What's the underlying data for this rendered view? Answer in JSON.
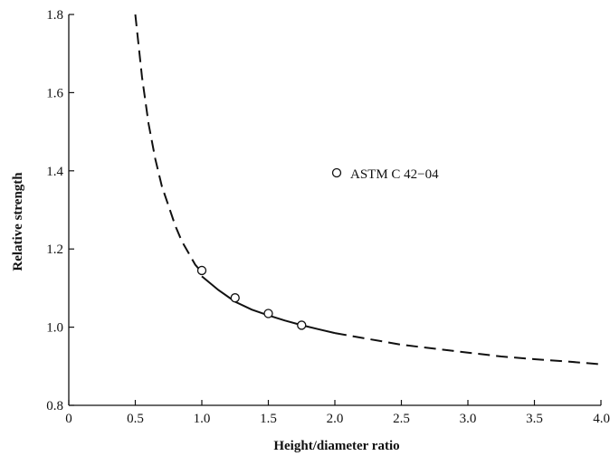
{
  "chart_data": {
    "type": "line",
    "title": "",
    "xlabel": "Height/diameter ratio",
    "ylabel": "Relative strength",
    "xlim": [
      0,
      4.0
    ],
    "ylim": [
      0.8,
      1.8
    ],
    "x_ticks": [
      "0",
      "0.5",
      "1.0",
      "1.5",
      "2.0",
      "2.5",
      "3.0",
      "3.5",
      "4.0"
    ],
    "y_ticks": [
      "0.8",
      "1.0",
      "1.2",
      "1.4",
      "1.6",
      "1.8"
    ],
    "grid": false,
    "curve": {
      "dashed_segments": [
        {
          "x": [
            0.5,
            0.55,
            0.6,
            0.65,
            0.7,
            0.75,
            0.8,
            0.85,
            0.9,
            0.95,
            1.0
          ],
          "y": [
            1.8,
            1.64,
            1.52,
            1.43,
            1.36,
            1.31,
            1.26,
            1.22,
            1.19,
            1.16,
            1.14
          ]
        },
        {
          "x": [
            2.0,
            2.25,
            2.5,
            2.75,
            3.0,
            3.25,
            3.5,
            3.75,
            4.0
          ],
          "y": [
            0.985,
            0.97,
            0.955,
            0.945,
            0.935,
            0.925,
            0.918,
            0.912,
            0.905
          ]
        }
      ],
      "solid_segment": {
        "x": [
          1.0,
          1.125,
          1.25,
          1.375,
          1.5,
          1.625,
          1.75,
          1.875,
          2.0
        ],
        "y": [
          1.13,
          1.095,
          1.065,
          1.045,
          1.03,
          1.017,
          1.005,
          0.995,
          0.985
        ]
      }
    },
    "series": [
      {
        "name": "ASTM C 42-04",
        "x": [
          1.0,
          1.25,
          1.5,
          1.75
        ],
        "y": [
          1.145,
          1.075,
          1.035,
          1.005
        ]
      }
    ],
    "legend": {
      "position": "center-right",
      "label": "ASTM C 42−04"
    }
  }
}
